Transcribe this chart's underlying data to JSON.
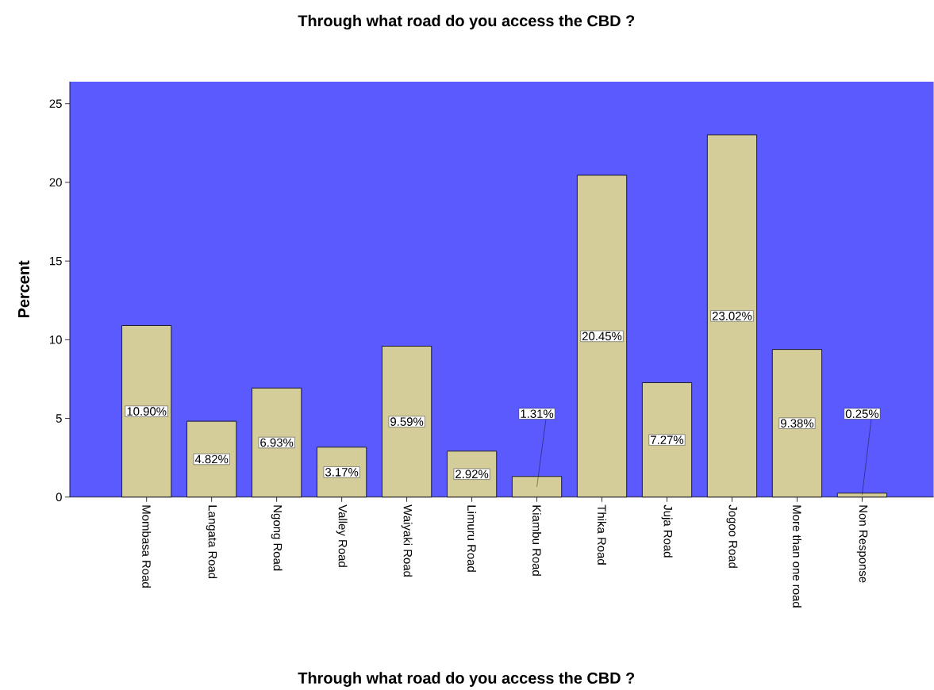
{
  "chart_data": {
    "type": "bar",
    "title": "Through what road do you access the CBD ?",
    "xlabel": "Through what road do you access the CBD ?",
    "ylabel": "Percent",
    "categories": [
      "Mombasa Road",
      "Langata Road",
      "Ngong Road",
      "Valley Road",
      "Waiyaki Road",
      "Limuru Road",
      "Kiambu Road",
      "Thika Road",
      "Juja Road",
      "Jogoo Road",
      "More than one road",
      "Non Response"
    ],
    "values": [
      10.9,
      4.82,
      6.93,
      3.17,
      9.59,
      2.92,
      1.31,
      20.45,
      7.27,
      23.02,
      9.38,
      0.25
    ],
    "value_labels": [
      "10.90%",
      "4.82%",
      "6.93%",
      "3.17%",
      "9.59%",
      "2.92%",
      "1.31%",
      "20.45%",
      "7.27%",
      "23.02%",
      "9.38%",
      "0.25%"
    ],
    "color": "#d4cd9a",
    "ylim": [
      0,
      26.4
    ],
    "yticks": [
      0,
      5,
      10,
      15,
      20,
      25
    ],
    "grid": false
  }
}
